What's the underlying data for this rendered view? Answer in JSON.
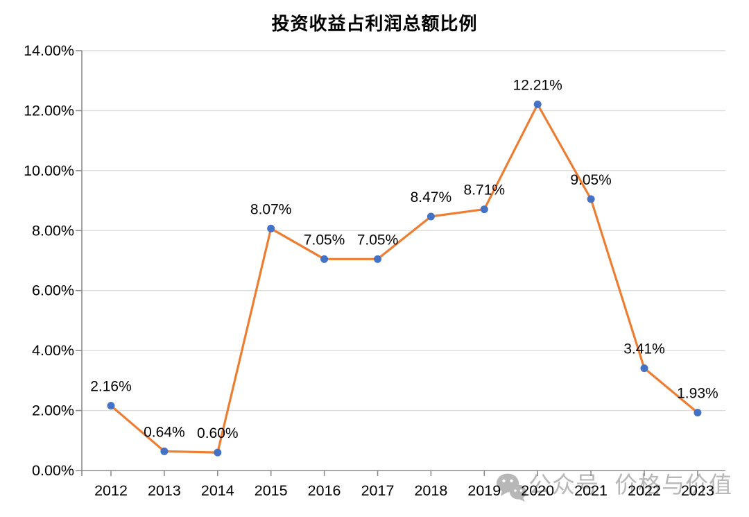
{
  "chart_data": {
    "type": "line",
    "title": "投资收益占利润总额比例",
    "categories": [
      "2012",
      "2013",
      "2014",
      "2015",
      "2016",
      "2017",
      "2018",
      "2019",
      "2020",
      "2021",
      "2022",
      "2023"
    ],
    "values": [
      2.16,
      0.64,
      0.6,
      8.07,
      7.05,
      7.05,
      8.47,
      8.71,
      12.21,
      9.05,
      3.41,
      1.93
    ],
    "data_labels": [
      "2.16%",
      "0.64%",
      "0.60%",
      "8.07%",
      "7.05%",
      "7.05%",
      "8.47%",
      "8.71%",
      "12.21%",
      "9.05%",
      "3.41%",
      "1.93%"
    ],
    "y_tick_labels": [
      "0.00%",
      "2.00%",
      "4.00%",
      "6.00%",
      "8.00%",
      "10.00%",
      "12.00%",
      "14.00%"
    ],
    "y_tick_values": [
      0,
      2,
      4,
      6,
      8,
      10,
      12,
      14
    ],
    "ylim": [
      0,
      14
    ],
    "xlabel": "",
    "ylabel": "",
    "grid": true,
    "legend": "none",
    "line_color": "#ED7D31",
    "marker_color": "#4472C4",
    "gridline_color": "#DCDCDC",
    "axis_color": "#8C8C8C",
    "label_color": "#000000"
  },
  "watermark": {
    "icon": "wechat-icon",
    "text": "公众号· 价格与价值",
    "color": "#B8B8B8"
  }
}
